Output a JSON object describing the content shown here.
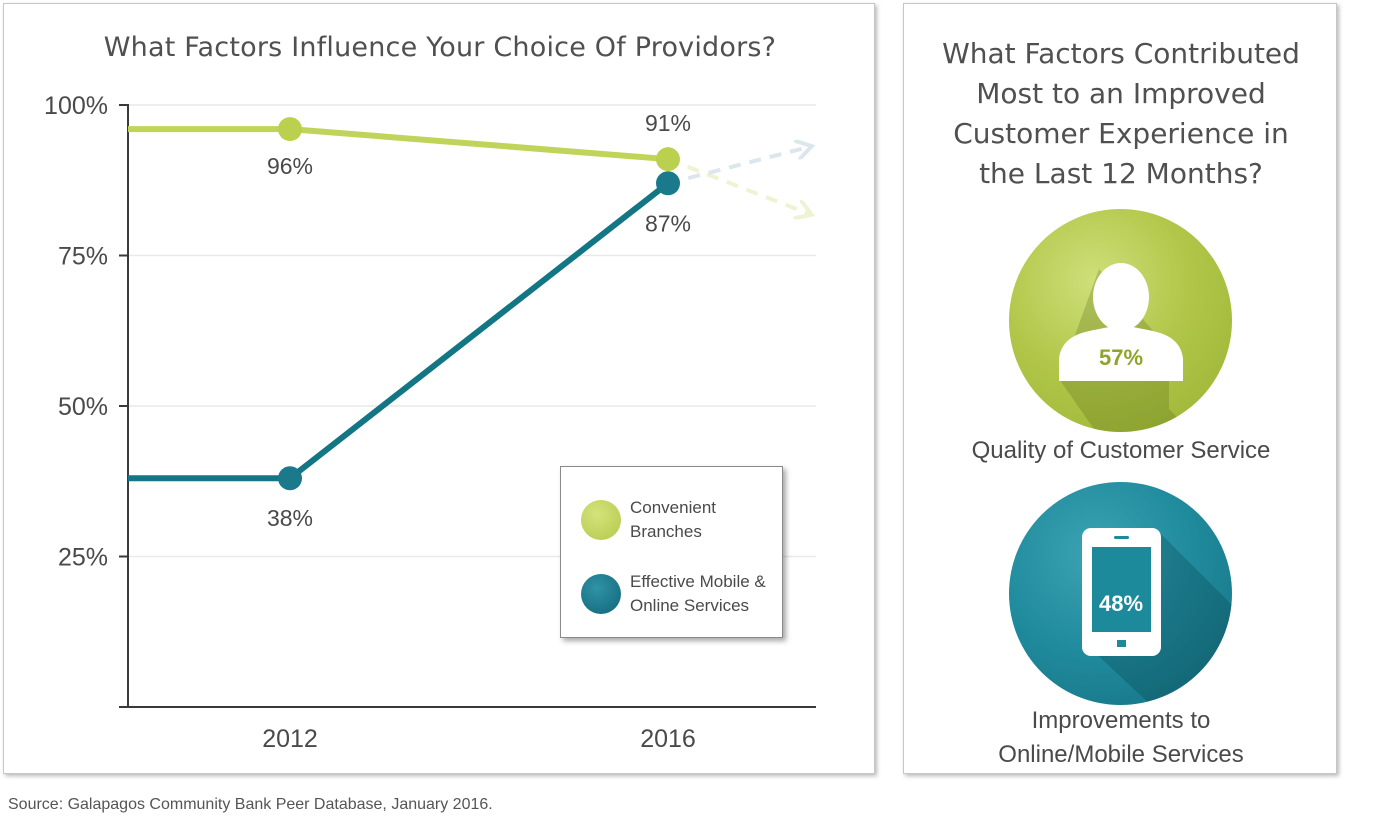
{
  "left_panel": {
    "title": "What Factors Influence Your Choice Of Providors?"
  },
  "chart_data": {
    "type": "line",
    "title": "What Factors Influence Your Choice Of Providors?",
    "xlabel": "",
    "ylabel": "",
    "categories": [
      "2012",
      "2016"
    ],
    "y_ticks": [
      "100%",
      "75%",
      "50%",
      "25%"
    ],
    "ylim": [
      0,
      100
    ],
    "grid": true,
    "legend_position": "bottom-right",
    "series": [
      {
        "name": "Convenient Branches",
        "legend_lines": [
          "Convenient",
          "Branches"
        ],
        "values": [
          96,
          91
        ],
        "labels": [
          "96%",
          "91%"
        ],
        "color": "#c1d45a",
        "trend_end": 82
      },
      {
        "name": "Effective Mobile & Online Services",
        "legend_lines": [
          "Effective Mobile &",
          "Online Services"
        ],
        "values": [
          38,
          87
        ],
        "labels": [
          "38%",
          "87%"
        ],
        "color": "#137684",
        "trend_end": 93
      }
    ]
  },
  "right_panel": {
    "title_lines": [
      "What Factors Contributed",
      "Most to an Improved",
      "Customer Experience in",
      "the Last 12 Months?"
    ],
    "items": [
      {
        "value": "57%",
        "icon": "person-silhouette-icon",
        "caption_lines": [
          "Quality of Customer Service"
        ],
        "circle_color": "#a9c13d",
        "value_color": "#8da52a"
      },
      {
        "value": "48%",
        "icon": "smartphone-icon",
        "caption_lines": [
          "Improvements to",
          "Online/Mobile Services"
        ],
        "circle_color": "#1d8a9c",
        "value_color": "#ffffff"
      }
    ]
  },
  "source": "Source: Galapagos Community Bank Peer Database, January 2016."
}
